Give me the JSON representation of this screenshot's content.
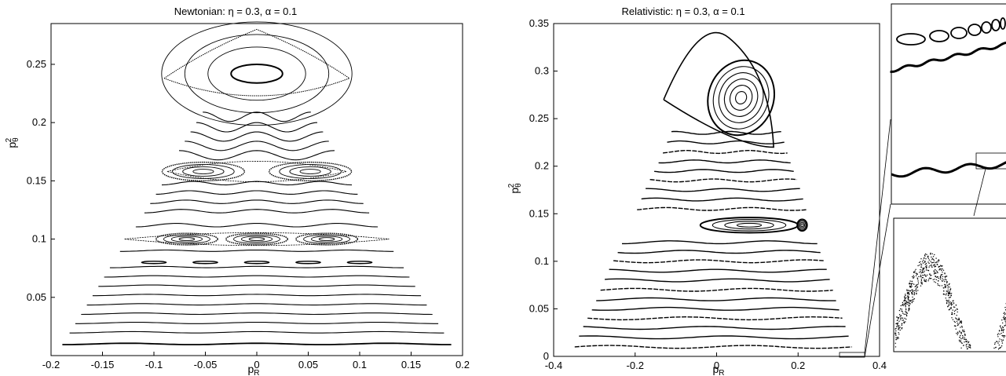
{
  "chart_data": [
    {
      "type": "scatter",
      "title": "Newtonian: η = 0.3, α = 0.1",
      "xlabel": "p_R",
      "ylabel": "p_θ²",
      "xlim": [
        -0.2,
        0.2
      ],
      "ylim": [
        0,
        0.285
      ],
      "xticks": [
        -0.2,
        -0.15,
        -0.1,
        -0.05,
        0,
        0.05,
        0.1,
        0.15,
        0.2
      ],
      "xtick_labels": [
        "-0.2",
        "-0.15",
        "-0.1",
        "-0.05",
        "0",
        "0.05",
        "0.1",
        "0.15",
        "0.2"
      ],
      "yticks": [
        0.05,
        0.1,
        0.15,
        0.2,
        0.25
      ],
      "ytick_labels": [
        "0.05",
        "0.1",
        "0.15",
        "0.2",
        "0.25"
      ],
      "grid": false,
      "boundary_half_width_at_zero": 0.2,
      "apex_y": 0.28,
      "tori_levels": [
        0.01,
        0.02,
        0.028,
        0.036,
        0.044,
        0.052,
        0.06,
        0.068,
        0.076,
        0.09,
        0.112,
        0.124,
        0.132,
        0.14,
        0.148,
        0.172,
        0.18,
        0.188,
        0.196,
        0.205
      ],
      "island_chains": [
        {
          "level": 0.08,
          "centers": [
            -0.1,
            -0.05,
            0,
            0.05,
            0.1
          ],
          "half_width": 0.012,
          "half_height": 0.001
        },
        {
          "level": 0.1,
          "centers": [
            -0.068,
            0,
            0.068
          ],
          "half_width": 0.03,
          "half_height": 0.005
        },
        {
          "level": 0.158,
          "centers": [
            -0.052,
            0.052
          ],
          "half_width": 0.04,
          "half_height": 0.008
        }
      ],
      "top_island": {
        "center": [
          0,
          0.242
        ],
        "half_width": 0.025,
        "half_height": 0.008
      }
    },
    {
      "type": "scatter",
      "title": "Relativistic: η = 0.3, α = 0.1",
      "xlabel": "p_R",
      "ylabel": "p_θ²",
      "xlim": [
        -0.4,
        0.4
      ],
      "ylim": [
        0,
        0.35
      ],
      "xticks": [
        -0.4,
        -0.2,
        0,
        0.2,
        0.4
      ],
      "xtick_labels": [
        "-0.4",
        "-0.2",
        "0",
        "0.2",
        "0.4"
      ],
      "yticks": [
        0,
        0.05,
        0.1,
        0.15,
        0.2,
        0.25,
        0.3,
        0.35
      ],
      "ytick_labels": [
        "0",
        "0.05",
        "0.1",
        "0.15",
        "0.2",
        "0.25",
        "0.3",
        "0.35"
      ],
      "grid": false,
      "boundary_left_at_zero": -0.37,
      "boundary_right_at_zero": 0.35,
      "apex": [
        0.0,
        0.34
      ],
      "tori_levels": [
        0.01,
        0.02,
        0.03,
        0.04,
        0.05,
        0.06,
        0.07,
        0.08,
        0.09,
        0.1,
        0.11,
        0.12,
        0.155,
        0.165,
        0.175,
        0.185,
        0.195,
        0.205,
        0.215,
        0.225,
        0.235
      ],
      "islands": [
        {
          "center": [
            0.08,
            0.138
          ],
          "half_width": 0.12,
          "half_height": 0.008
        },
        {
          "center": [
            0.06,
            0.272
          ],
          "half_width": 0.08,
          "half_height": 0.04
        },
        {
          "center": [
            0.21,
            0.138
          ],
          "half_width": 0.012,
          "half_height": 0.006
        }
      ],
      "zoom_box": {
        "x": [
          0.3,
          0.345
        ],
        "y": [
          0.0,
          0.006
        ]
      }
    }
  ],
  "inset": {
    "top_panel": "zoom of lower tori near the right edge",
    "bottom_panel": "zoom of oscillating torus segment"
  }
}
